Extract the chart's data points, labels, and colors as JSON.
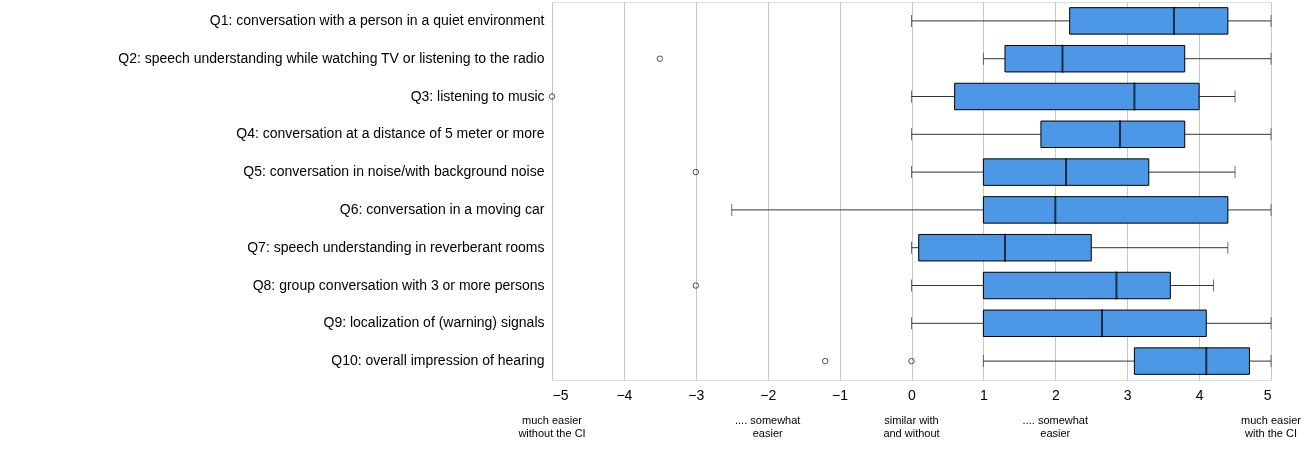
{
  "chart_data": {
    "type": "box",
    "orientation": "horizontal",
    "categories": [
      "Q1: conversation with a person in a quiet environment",
      "Q2: speech understanding while watching TV or listening to the radio",
      "Q3: listening to music",
      "Q4: conversation at a distance of 5 meter or more",
      "Q5: conversation in noise/with background noise",
      "Q6: conversation in a moving car",
      "Q7: speech understanding in reverberant rooms",
      "Q8: group conversation with 3 or more persons",
      "Q9: localization of (warning) signals",
      "Q10: overall impression of hearing"
    ],
    "boxes": [
      {
        "low": 0,
        "q1": 2.2,
        "median": 3.65,
        "q3": 4.4,
        "high": 5
      },
      {
        "low": 1,
        "q1": 1.3,
        "median": 2.1,
        "q3": 3.8,
        "high": 5,
        "outliers": [
          -3.5
        ]
      },
      {
        "low": 0,
        "q1": 0.6,
        "median": 3.1,
        "q3": 4.0,
        "high": 4.5,
        "outliers": [
          -5
        ]
      },
      {
        "low": 0,
        "q1": 1.8,
        "median": 2.9,
        "q3": 3.8,
        "high": 5
      },
      {
        "low": 0,
        "q1": 1,
        "median": 2.15,
        "q3": 3.3,
        "high": 4.5,
        "outliers": [
          -3
        ]
      },
      {
        "low": -2.5,
        "q1": 1,
        "median": 2,
        "q3": 4.4,
        "high": 5
      },
      {
        "low": 0,
        "q1": 0.1,
        "median": 1.3,
        "q3": 2.5,
        "high": 4.4
      },
      {
        "low": 0,
        "q1": 1,
        "median": 2.85,
        "q3": 3.6,
        "high": 4.2,
        "outliers": [
          -3
        ]
      },
      {
        "low": 0,
        "q1": 1,
        "median": 2.65,
        "q3": 4.1,
        "high": 5
      },
      {
        "low": 1,
        "q1": 3.1,
        "median": 4.1,
        "q3": 4.7,
        "high": 5,
        "outliers": [
          -1.2,
          0
        ]
      }
    ],
    "color": "#4c98e6",
    "xlim": [
      -5,
      5
    ],
    "xticks": [
      -5,
      -4,
      -3,
      -2,
      -1,
      0,
      1,
      2,
      3,
      4,
      5
    ],
    "grid": "x",
    "annotations": [
      "much easier\nwithout the CI",
      ".... somewhat\neasier",
      "similar with\nand without",
      ".... somewhat\neasier",
      "much easier\nwith the CI"
    ]
  }
}
